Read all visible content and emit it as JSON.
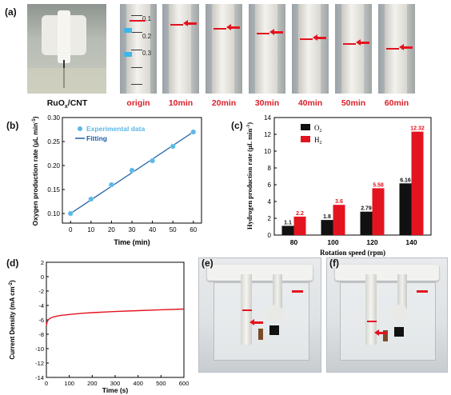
{
  "panels": {
    "a": "(a)",
    "b": "(b)",
    "c": "(c)",
    "d": "(d)",
    "e": "(e)",
    "f": "(f)"
  },
  "panel_a": {
    "captions": [
      "RuO",
      "x",
      "/CNT",
      "origin",
      "10min",
      "20min",
      "30min",
      "40min",
      "50min",
      "60min"
    ],
    "origin_scale": [
      "0.1",
      "0.2",
      "0.3"
    ]
  },
  "colors": {
    "red": "#e3141f",
    "blue_fit": "#1f5fa8",
    "blue_point": "#5bb8e6",
    "black": "#111111"
  },
  "chart_data": [
    {
      "type": "scatter",
      "panel": "b",
      "xlabel": "Time (min)",
      "ylabel": "Oxygen production rate (μL min",
      "ylabel_sup": "-1",
      "ylabel_end": ")",
      "xlim": [
        -4,
        64
      ],
      "ylim": [
        0.08,
        0.3
      ],
      "xticks": [
        "0",
        "10",
        "20",
        "30",
        "40",
        "50",
        "60"
      ],
      "yticks": [
        "0.10",
        "0.15",
        "0.20",
        "0.25",
        "0.30"
      ],
      "series": [
        {
          "name": "Experimental data",
          "x": [
            0,
            10,
            20,
            30,
            40,
            50,
            60
          ],
          "y": [
            0.1,
            0.13,
            0.16,
            0.19,
            0.21,
            0.24,
            0.27
          ]
        },
        {
          "name": "Fitting",
          "x": [
            0,
            60
          ],
          "y": [
            0.1,
            0.27
          ]
        }
      ]
    },
    {
      "type": "bar",
      "panel": "c",
      "xlabel": "Rotation speed (rpm)",
      "ylabel": "Hydrogen production rate (μL min",
      "ylabel_sup": "-1",
      "ylabel_end": ")",
      "categories": [
        "80",
        "100",
        "120",
        "140"
      ],
      "ylim": [
        0,
        14
      ],
      "yticks": [
        "0",
        "2",
        "4",
        "6",
        "8",
        "10",
        "12",
        "14"
      ],
      "series": [
        {
          "name": "O",
          "sub": "2",
          "values": [
            1.1,
            1.8,
            2.79,
            6.16
          ],
          "labels": [
            "1.1",
            "1.8",
            "2.79",
            "6.16"
          ]
        },
        {
          "name": "H",
          "sub": "2",
          "values": [
            2.2,
            3.6,
            5.58,
            12.32
          ],
          "labels": [
            "2.2",
            "3.6",
            "5.58",
            "12.32"
          ]
        }
      ]
    },
    {
      "type": "line",
      "panel": "d",
      "xlabel": "Time (s)",
      "ylabel": "Current Density (mA cm",
      "ylabel_sup": "-2",
      "ylabel_end": ")",
      "xlim": [
        0,
        600
      ],
      "ylim": [
        -14,
        2
      ],
      "xticks": [
        "0",
        "100",
        "200",
        "300",
        "400",
        "500",
        "600"
      ],
      "yticks": [
        "2",
        "0",
        "-2",
        "-4",
        "-6",
        "-8",
        "-10",
        "-12",
        "-14"
      ],
      "series": [
        {
          "x": [
            0,
            3,
            8,
            15,
            30,
            60,
            100,
            150,
            200,
            300,
            400,
            500,
            600
          ],
          "y": [
            -6.8,
            -6.3,
            -6.0,
            -5.8,
            -5.6,
            -5.4,
            -5.25,
            -5.1,
            -5.0,
            -4.85,
            -4.72,
            -4.6,
            -4.5
          ]
        }
      ]
    }
  ]
}
